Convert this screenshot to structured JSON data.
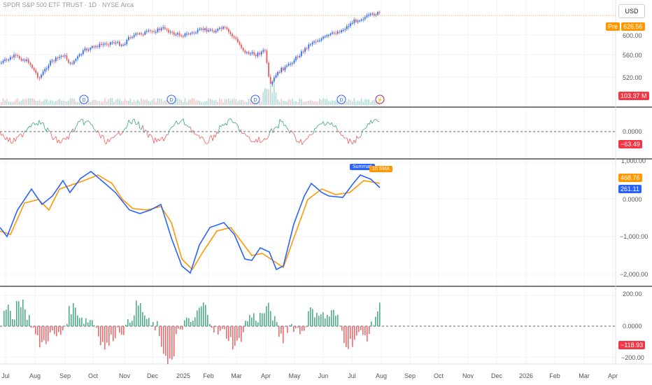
{
  "header": {
    "title": "SPDR S&P 500 ETF TRUST · 1D · NYSE Arca",
    "currency": "USD"
  },
  "price_panel": {
    "pre_label": "Pre",
    "pre_value": "626.56",
    "axis_ticks": [
      "600.00",
      "560.00",
      "520.00"
    ],
    "volume_badge": "103.37 M",
    "event_markers": [
      "D",
      "D",
      "D",
      "D",
      "⚡"
    ]
  },
  "osc_panel": {
    "axis_ticks": [
      "0.0000"
    ],
    "value_badge": "−63.49"
  },
  "sum_panel": {
    "axis_ticks": [
      "1,000.00",
      "0.0000",
      "−1,000.00",
      "−2,000.00"
    ],
    "sma_badge": "468.76",
    "sum_badge": "261.11",
    "summation_tag": "Summati",
    "sma_tag": "10 SMA"
  },
  "hist_panel": {
    "axis_ticks": [
      "200.00",
      "0.0000",
      "−200.00"
    ],
    "value_badge": "−118.93"
  },
  "time_axis": {
    "labels": [
      "Jul",
      "Aug",
      "Sep",
      "Oct",
      "Nov",
      "Dec",
      "2025",
      "Feb",
      "Mar",
      "Apr",
      "May",
      "Jun",
      "Jul",
      "Aug",
      "Sep",
      "Oct",
      "Nov",
      "Dec",
      "2026",
      "Feb",
      "Mar",
      "Apr"
    ]
  },
  "colors": {
    "up": "#26a69a",
    "down": "#ef5350",
    "blue": "#2962ff",
    "orange": "#ff9800",
    "line_up": "#4caf86",
    "line_down": "#ef6b6b",
    "badge_red": "#f23645"
  }
}
